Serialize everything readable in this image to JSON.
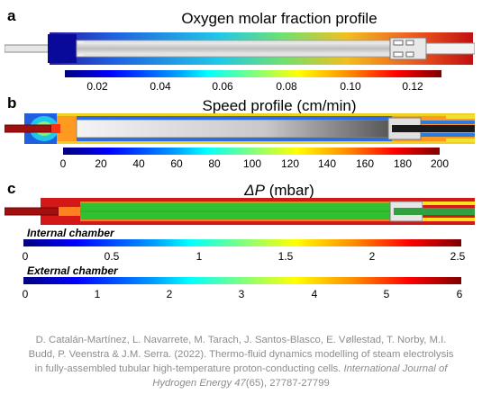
{
  "panels": [
    {
      "letter": "a",
      "title": "Oxygen molar fraction profile",
      "ticks": [
        "0.02",
        "0.04",
        "0.06",
        "0.08",
        "0.10",
        "0.12"
      ]
    },
    {
      "letter": "b",
      "title": "Speed profile (cm/min)",
      "ticks": [
        "0",
        "20",
        "40",
        "60",
        "80",
        "100",
        "120",
        "140",
        "160",
        "180",
        "200"
      ]
    },
    {
      "letter": "c",
      "title_symbol": "ΔP",
      "title_unit": " (mbar)",
      "internal_label": "Internal chamber",
      "internal_ticks": [
        "0",
        "0.5",
        "1",
        "1.5",
        "2",
        "2.5"
      ],
      "external_label": "External chamber",
      "external_ticks": [
        "0",
        "1",
        "2",
        "3",
        "4",
        "5",
        "6"
      ]
    }
  ],
  "citation": {
    "line1": "D. Catalán-Martínez, L. Navarrete, M. Tarach, J. Santos-Blasco, E. Vøllestad, T. Norby, M.I.",
    "line2": "Budd, P. Veenstra & J.M. Serra. (2022). Thermo-fluid dynamics modelling of steam electrolysis",
    "line3_plain": "in fully-assembled tubular high-temperature proton-conducting cells. ",
    "line3_italic": "International Journal of",
    "line4_italic": "Hydrogen Energy 47",
    "line4_plain": "(65), 27787-27799"
  },
  "colors": {
    "jet": [
      "#00007f",
      "#0000ff",
      "#00a0ff",
      "#00ffff",
      "#7fff7f",
      "#ffff00",
      "#ff9000",
      "#ff0000",
      "#7f0000"
    ],
    "citation_text": "#8c8c8c"
  }
}
